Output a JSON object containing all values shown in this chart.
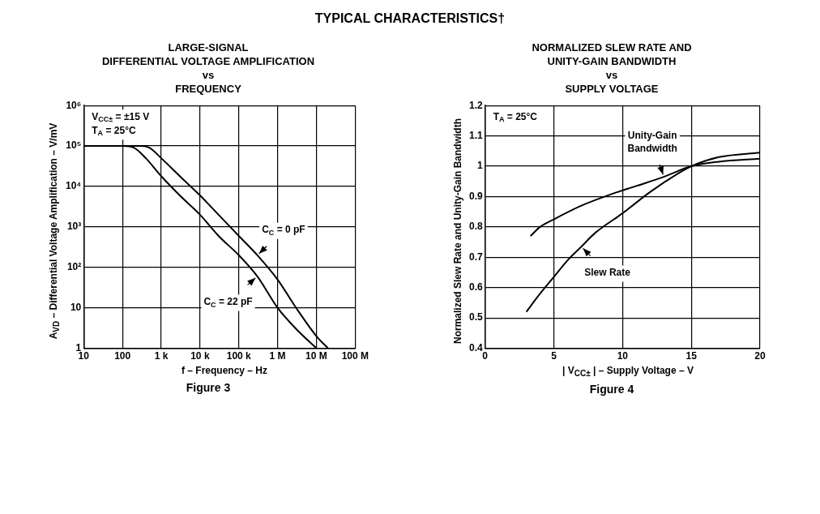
{
  "chart_data": [
    {
      "type": "other",
      "title": "TYPICAL CHARACTERISTICS†"
    },
    {
      "type": "line",
      "title": "LARGE-SIGNAL\nDIFFERENTIAL VOLTAGE AMPLIFICATION\nvs\nFREQUENCY",
      "xlabel": "f – Frequency – Hz",
      "ylabel": "A$_{VD}$ – Differential Voltage Amplification – V/mV",
      "log": "xy",
      "grid": true,
      "legend": false,
      "marker": "none",
      "line_style": "solid",
      "xlim": [
        10,
        100000000
      ],
      "xticks": [
        10,
        100,
        {
          "value": 1000,
          "label": "1 k"
        },
        {
          "value": 10000,
          "label": "10 k"
        },
        {
          "value": 100000,
          "label": "100 k"
        },
        {
          "value": 1000000,
          "label": "1 M"
        },
        {
          "value": 10000000,
          "label": "10 M"
        },
        {
          "value": 100000000,
          "label": "100 M"
        }
      ],
      "ylim": [
        1,
        1000000
      ],
      "yticks": [
        1,
        10,
        {
          "value": 100,
          "label": "10²"
        },
        {
          "value": 1000,
          "label": "10³"
        },
        {
          "value": 10000,
          "label": "10⁴"
        },
        {
          "value": 100000,
          "label": "10⁵"
        },
        {
          "value": 1000000,
          "label": "10⁶"
        }
      ],
      "series": [
        {
          "color": "#000000",
          "x": [
            10,
            100,
            300,
            500,
            1000,
            3000,
            10000,
            30000,
            100000,
            300000,
            1000000,
            3000000,
            10000000,
            20000000
          ],
          "values": [
            100000,
            100000,
            100000,
            90000,
            50000,
            18000,
            6000,
            2000,
            600,
            200,
            50,
            10,
            2,
            1
          ]
        },
        {
          "color": "#000000",
          "x": [
            10,
            100,
            200,
            400,
            1000,
            3000,
            10000,
            30000,
            100000,
            300000,
            1000000,
            3000000,
            10000000
          ],
          "values": [
            100000,
            100000,
            90000,
            50000,
            18000,
            6000,
            2000,
            600,
            200,
            60,
            10,
            3,
            1
          ]
        }
      ],
      "annotations": [
        "V$_{CC±}$ = ±15 V",
        "T$_{A}$ = 25°C",
        {
          "text": "C$_{C}$ = 0 pF",
          "x": 300000,
          "y": 200
        },
        {
          "text": "C$_{C}$ = 22 pF",
          "x": 300000,
          "y": 60
        },
        "Figure 3"
      ]
    },
    {
      "type": "line",
      "title": "NORMALIZED SLEW RATE AND\nUNITY-GAIN BANDWIDTH\nvs\nSUPPLY VOLTAGE",
      "xlabel": "| V$_{CC±}$ | – Supply Voltage – V",
      "ylabel": "Normalized Slew Rate and Unity-Gain Bandwidth",
      "grid": true,
      "legend": false,
      "marker": "none",
      "line_style": "solid",
      "xlim": [
        0,
        20
      ],
      "xticks": [
        0,
        5,
        10,
        15,
        20
      ],
      "ylim": [
        0.4,
        1.2
      ],
      "yticks": [
        0.4,
        0.5,
        0.6,
        0.7,
        0.8,
        0.9,
        1,
        1.1,
        1.2
      ],
      "series": [
        {
          "color": "#000000",
          "x": [
            3.3,
            4,
            5,
            7,
            9,
            11,
            13,
            15,
            17,
            20
          ],
          "values": [
            0.77,
            0.8,
            0.825,
            0.87,
            0.905,
            0.935,
            0.965,
            1,
            1.015,
            1.025
          ]
        },
        {
          "color": "#000000",
          "x": [
            3,
            4,
            5,
            6,
            7,
            8,
            10,
            12,
            14,
            15,
            17,
            20
          ],
          "values": [
            0.52,
            0.58,
            0.635,
            0.69,
            0.735,
            0.78,
            0.845,
            0.915,
            0.975,
            1,
            1.03,
            1.045
          ]
        }
      ],
      "annotations": [
        "T$_{A}$ = 25°C",
        {
          "text": "Unity-Gain Bandwidth",
          "x": 13,
          "y": 0.965
        },
        {
          "text": "Slew Rate",
          "x": 7,
          "y": 0.735
        },
        "Figure 4"
      ]
    }
  ]
}
